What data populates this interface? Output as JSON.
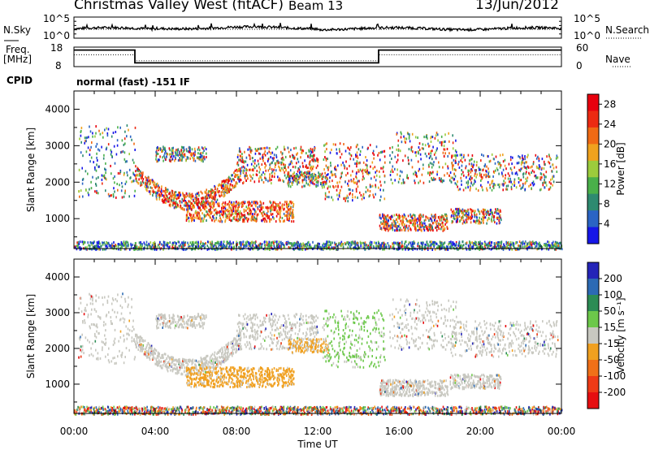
{
  "header": {
    "title": "Christmas Valley West (fitACF)",
    "beam": "Beam 13",
    "date": "13/Jun/2012"
  },
  "top_panels": {
    "nsky_label": "N.Sky",
    "nsky_ticks": [
      "10^5",
      "10^0"
    ],
    "nsearch_label": "N.Search",
    "nsearch_ticks": [
      "10^5",
      "10^0"
    ],
    "freq_label_1": "Freq.",
    "freq_label_2": "[MHz]",
    "freq_ticks": [
      "18",
      "8"
    ],
    "nave_label": "Nave",
    "nave_ticks": [
      "60",
      "0"
    ],
    "cpid_label": "CPID",
    "cpid_value": "normal (fast) -151 IF"
  },
  "x_axis": {
    "label": "Time UT",
    "ticks": [
      "00:00",
      "04:00",
      "08:00",
      "12:00",
      "16:00",
      "20:00",
      "00:00"
    ]
  },
  "colors": {
    "power_scale": [
      "#1616e8",
      "#2a64c4",
      "#2e8a70",
      "#4ab04a",
      "#9ccc3c",
      "#f0a21e",
      "#f06a14",
      "#ec2a12",
      "#e8000e"
    ],
    "velocity_scale": [
      "#2424b8",
      "#2c6ab4",
      "#2c8c54",
      "#6cc84a",
      "#c8c8c0",
      "#f0a020",
      "#f07018",
      "#ee3a16",
      "#e60e10"
    ]
  },
  "chart_data": [
    {
      "type": "line",
      "name": "nsky",
      "x_range_hours": [
        0,
        24
      ],
      "ylabel": "N.Sky",
      "log_scale": true,
      "ylim_log10": [
        0,
        5
      ]
    },
    {
      "type": "line",
      "ylabel": "Freq. [MHz]",
      "ylim": [
        8,
        18
      ],
      "series": [
        {
          "name": "Freq.",
          "x": [
            0,
            3.0,
            3.0,
            15.0,
            15.0,
            24
          ],
          "values": [
            16.5,
            16.5,
            9.9,
            9.9,
            16.5,
            16.5
          ]
        },
        {
          "name": "Nave",
          "x": [
            0,
            3.0,
            3.0,
            15.0,
            15.0,
            24
          ],
          "values": [
            14.0,
            14.0,
            11.0,
            11.0,
            14.0,
            14.0
          ]
        }
      ]
    },
    {
      "type": "heatmap",
      "name": "power",
      "xlabel": "Time UT",
      "ylabel": "Slant Range [km]",
      "x_ticks": [
        "00:00",
        "04:00",
        "08:00",
        "12:00",
        "16:00",
        "20:00",
        "00:00"
      ],
      "y_ticks": [
        1000,
        2000,
        3000,
        4000
      ],
      "ylim": [
        180,
        4500
      ],
      "colorbar_label": "Power [dB]",
      "colorbar_ticks": [
        4,
        8,
        12,
        16,
        20,
        24,
        28
      ],
      "colorbar_range": [
        0,
        30
      ]
    },
    {
      "type": "heatmap",
      "name": "velocity",
      "xlabel": "Time UT",
      "ylabel": "Slant Range [km]",
      "x_ticks": [
        "00:00",
        "04:00",
        "08:00",
        "12:00",
        "16:00",
        "20:00",
        "00:00"
      ],
      "y_ticks": [
        1000,
        2000,
        3000,
        4000
      ],
      "ylim": [
        180,
        4500
      ],
      "colorbar_label": "Velocity [m s⁻¹]",
      "colorbar_ticks": [
        200,
        100,
        50,
        15,
        -15,
        -50,
        -100,
        -200
      ]
    }
  ]
}
